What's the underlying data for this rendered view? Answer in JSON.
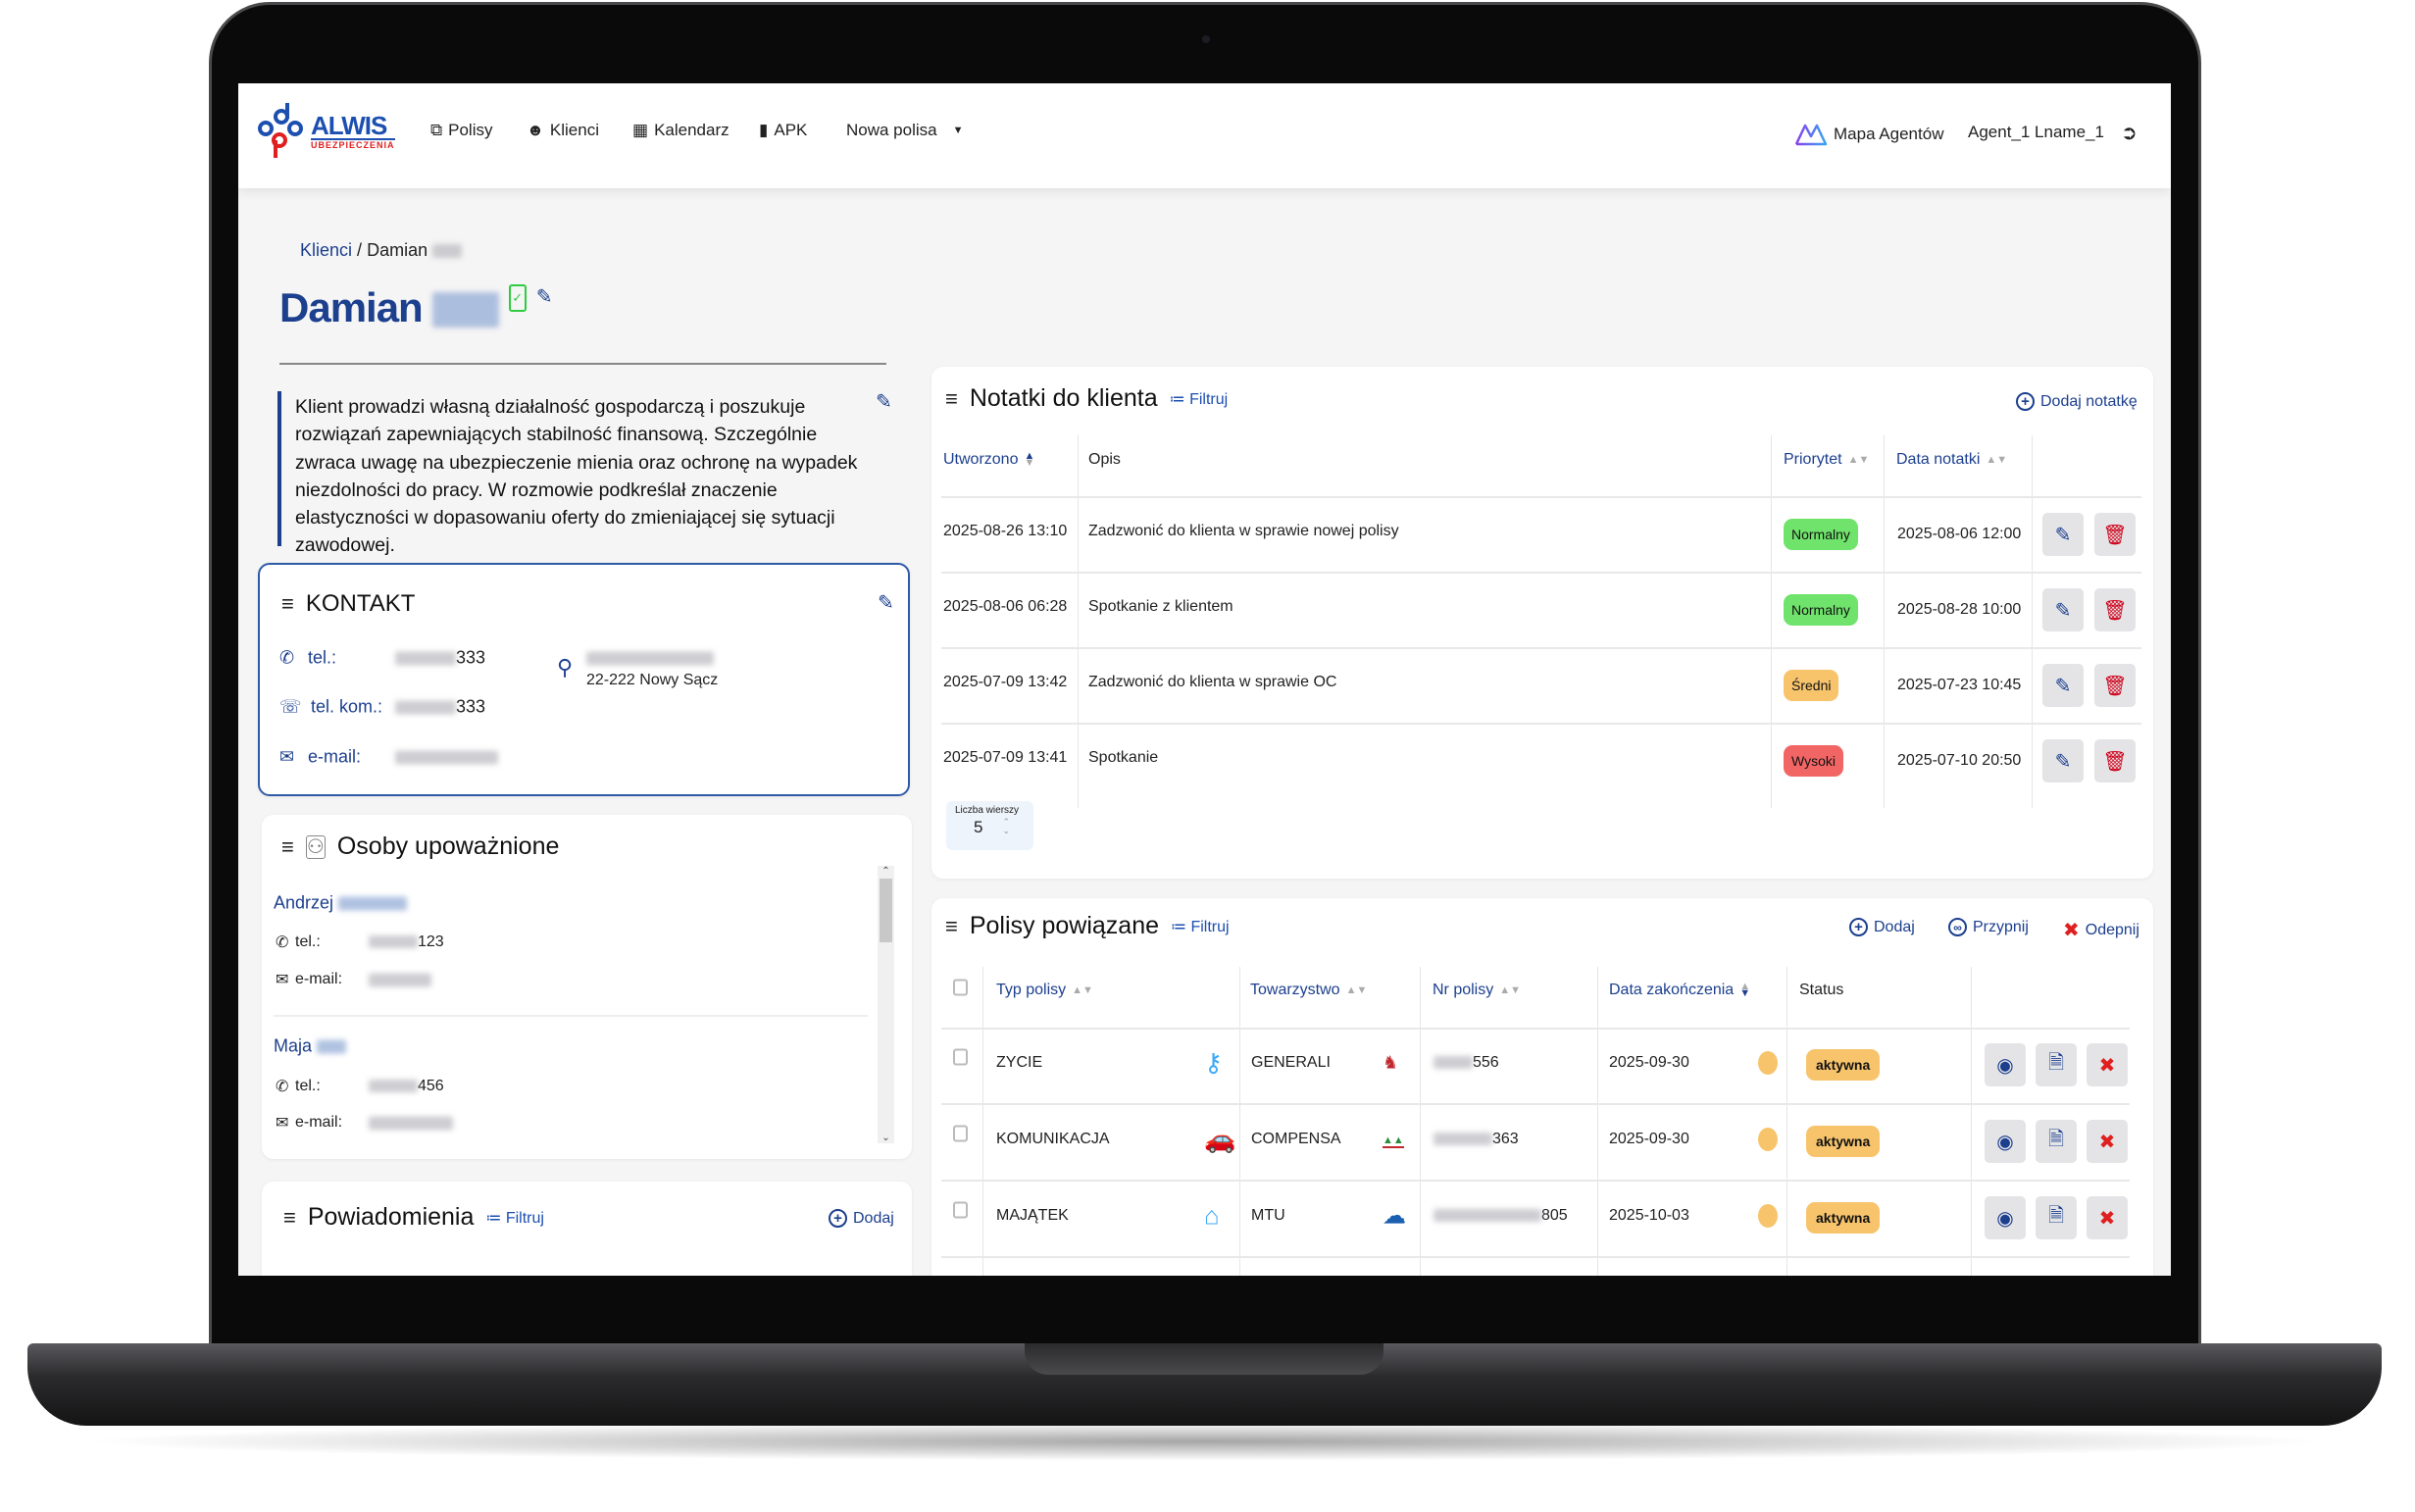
{
  "nav": {
    "logo_text": "ALWIS",
    "logo_sub": "UBEZPIECZENIA",
    "items": [
      {
        "label": "Polisy",
        "icon": "copy-icon"
      },
      {
        "label": "Klienci",
        "icon": "users-icon"
      },
      {
        "label": "Kalendarz",
        "icon": "calendar-icon"
      },
      {
        "label": "APK",
        "icon": "tablet-icon"
      },
      {
        "label": "Nowa polisa",
        "icon": "caret-down-icon"
      }
    ],
    "map_label": "Mapa Agentów",
    "user": "Agent_1 Lname_1"
  },
  "breadcrumb": {
    "parent": "Klienci",
    "separator": "/",
    "current": "Damian"
  },
  "client": {
    "first_name": "Damian",
    "description": "Klient prowadzi własną działalność gospodarczą i poszukuje rozwiązań zapewniających stabilność finansową. Szczególnie zwraca uwagę na ubezpieczenie mienia oraz ochronę na wypadek niezdolności do pracy. W rozmowie podkreślał znaczenie elastyczności w dopasowaniu oferty do zmieniającej się sytuacji zawodowej."
  },
  "contact": {
    "title": "KONTAKT",
    "phone_label": "tel.:",
    "phone_suffix": "333",
    "mobile_label": "tel. kom.:",
    "mobile_suffix": "333",
    "email_label": "e-mail:",
    "address_line2": "22-222 Nowy Sącz"
  },
  "authorized": {
    "title": "Osoby upoważnione",
    "people": [
      {
        "first_name": "Andrzej",
        "phone_label": "tel.:",
        "phone_suffix": "123",
        "email_label": "e-mail:"
      },
      {
        "first_name": "Maja",
        "phone_label": "tel.:",
        "phone_suffix": "456",
        "email_label": "e-mail:"
      }
    ]
  },
  "notifications": {
    "title": "Powiadomienia",
    "filter": "Filtruj",
    "add": "Dodaj"
  },
  "notes": {
    "title": "Notatki do klienta",
    "filter": "Filtruj",
    "add": "Dodaj notatkę",
    "columns": [
      "Utworzono",
      "Opis",
      "Priorytet",
      "Data notatki"
    ],
    "rows": [
      {
        "created": "2025-08-26 13:10",
        "desc": "Zadzwonić do klienta w sprawie nowej polisy",
        "priority": "Normalny",
        "date": "2025-08-06 12:00"
      },
      {
        "created": "2025-08-06 06:28",
        "desc": "Spotkanie z klientem",
        "priority": "Normalny",
        "date": "2025-08-28 10:00"
      },
      {
        "created": "2025-07-09 13:42",
        "desc": "Zadzwonić do klienta w sprawie OC",
        "priority": "Średni",
        "date": "2025-07-23 10:45"
      },
      {
        "created": "2025-07-09 13:41",
        "desc": "Spotkanie",
        "priority": "Wysoki",
        "date": "2025-07-10 20:50"
      }
    ],
    "rows_label": "Liczba wierszy",
    "rows_value": "5"
  },
  "policies": {
    "title": "Polisy powiązane",
    "filter": "Filtruj",
    "add": "Dodaj",
    "attach": "Przypnij",
    "detach": "Odepnij",
    "columns": [
      "Typ polisy",
      "Towarzystwo",
      "Nr polisy",
      "Data zakończenia",
      "Status"
    ],
    "rows": [
      {
        "type": "ZYCIE",
        "type_icon": "family-icon",
        "company": "GENERALI",
        "number_suffix": "556",
        "end": "2025-09-30",
        "status": "aktywna"
      },
      {
        "type": "KOMUNIKACJA",
        "type_icon": "car-icon",
        "company": "COMPENSA",
        "number_suffix": "363",
        "end": "2025-09-30",
        "status": "aktywna"
      },
      {
        "type": "MAJĄTEK",
        "type_icon": "house-icon",
        "company": "MTU",
        "number_suffix": "805",
        "end": "2025-10-03",
        "status": "aktywna"
      }
    ]
  },
  "colors": {
    "accent": "#1c3f8e",
    "normal": "#6fe36b",
    "medium": "#f7c46c",
    "high": "#f26565",
    "active": "#f7c46c",
    "danger": "#d0021b"
  }
}
